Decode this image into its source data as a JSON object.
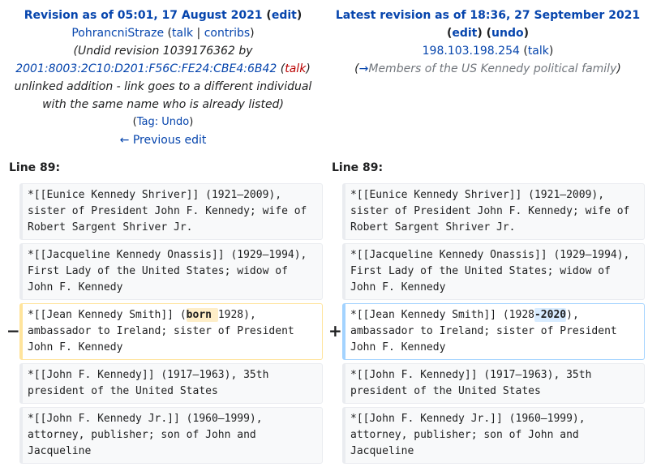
{
  "left_header": {
    "title": "Revision as of 05:01, 17 August 2021",
    "edit": "edit",
    "user": "PohrancniStraze",
    "talk": "talk",
    "contribs": "contribs",
    "comment_prefix": "Undid revision 1039176362 by",
    "ip": "2001:8003:2C10:D201:F56C:FE24:CBE4:6B42",
    "ip_talk": "talk",
    "comment_rest": "unlinked addition - link goes to a different individual with the same name who is already listed",
    "tag_label": "Tag:",
    "tag_value": "Undo",
    "prev_edit": "← Previous edit"
  },
  "right_header": {
    "title": "Latest revision as of 18:36, 27 September 2021",
    "edit": "edit",
    "undo": "undo",
    "ip": "198.103.198.254",
    "talk": "talk",
    "section_arrow": "→",
    "section": "Members of the US Kennedy political family"
  },
  "line_label_left": "Line 89:",
  "line_label_right": "Line 89:",
  "diff_markers": {
    "minus": "−",
    "plus": "+"
  },
  "rows": {
    "r1": "*[[Eunice Kennedy Shriver]] (1921–2009), sister of President John F. Kennedy; wife of Robert Sargent Shriver Jr.",
    "r2": "*[[Jacqueline Kennedy Onassis]] (1929–1994), First Lady of the United States; widow of John F. Kennedy",
    "changed_old": {
      "before": "*[[Jean Kennedy Smith]] (",
      "change": "born ",
      "after": "1928), ambassador to Ireland; sister of President John F. Kennedy"
    },
    "changed_new": {
      "before": "*[[Jean Kennedy Smith]] (1928",
      "change": "-2020",
      "after": "), ambassador to Ireland; sister of President John F. Kennedy"
    },
    "r4": "*[[John F. Kennedy]] (1917–1963), 35th president of the United States",
    "r5": "*[[John F. Kennedy Jr.]] (1960–1999), attorney, publisher; son of John and Jacqueline"
  },
  "colors": {
    "link": "#0645ad",
    "redlink": "#ba0000",
    "deleted_border": "#ffe49c",
    "deleted_highlight": "#feeec8",
    "added_border": "#a3d3ff",
    "added_highlight": "#d8ecff",
    "context_bg": "#f8f9fa"
  }
}
